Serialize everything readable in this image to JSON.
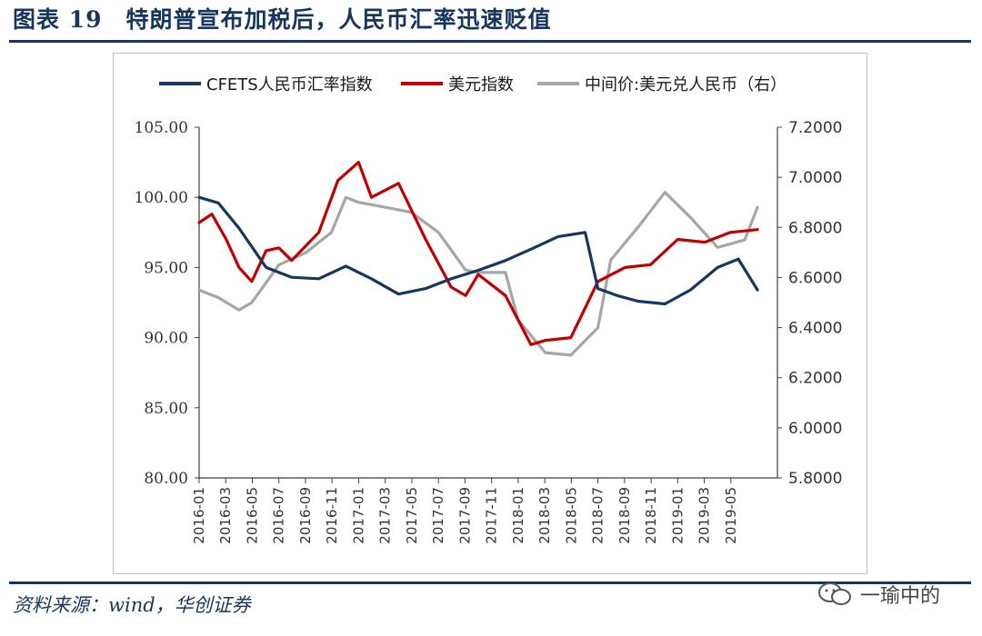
{
  "figure": {
    "title": "图表 19　特朗普宣布加税后，人民币汇率迅速贬值",
    "source": "资料来源：wind，华创证券",
    "watermark": "一瑜中的"
  },
  "colors": {
    "navy": "#17375e",
    "red": "#c00000",
    "gray": "#a6a6a6",
    "axis": "#404040"
  },
  "chart_data": {
    "type": "line",
    "x_tick_labels": [
      "2016-01",
      "2016-03",
      "2016-05",
      "2016-07",
      "2016-09",
      "2016-11",
      "2017-01",
      "2017-03",
      "2017-05",
      "2017-07",
      "2017-09",
      "2017-11",
      "2018-01",
      "2018-03",
      "2018-05",
      "2018-07",
      "2018-09",
      "2018-11",
      "2019-01",
      "2019-03",
      "2019-05"
    ],
    "y_left": {
      "lim": [
        80,
        105
      ],
      "ticks": [
        "80.00",
        "85.00",
        "90.00",
        "95.00",
        "100.00",
        "105.00"
      ]
    },
    "y_right": {
      "lim": [
        5.8,
        7.2
      ],
      "ticks": [
        "5.8000",
        "6.0000",
        "6.2000",
        "6.4000",
        "6.6000",
        "6.8000",
        "7.0000",
        "7.2000"
      ]
    },
    "legend_position": "top",
    "grid": false,
    "series": [
      {
        "name": "CFETS人民币汇率指数",
        "axis": "left",
        "color": "#17375e",
        "x": [
          2016.0,
          2016.12,
          2016.25,
          2016.42,
          2016.58,
          2016.75,
          2016.92,
          2017.08,
          2017.25,
          2017.42,
          2017.58,
          2017.75,
          2017.92,
          2018.08,
          2018.25,
          2018.42,
          2018.5,
          2018.62,
          2018.75,
          2018.92,
          2019.08,
          2019.25,
          2019.38,
          2019.5
        ],
        "values": [
          100.0,
          99.6,
          97.8,
          95.0,
          94.3,
          94.2,
          95.1,
          94.2,
          93.1,
          93.5,
          94.2,
          94.8,
          95.5,
          96.3,
          97.2,
          97.5,
          93.5,
          93.0,
          92.6,
          92.4,
          93.4,
          95.0,
          95.6,
          93.4
        ]
      },
      {
        "name": "美元指数",
        "axis": "left",
        "color": "#c00000",
        "x": [
          2016.0,
          2016.08,
          2016.17,
          2016.25,
          2016.33,
          2016.42,
          2016.5,
          2016.58,
          2016.75,
          2016.87,
          2017.0,
          2017.08,
          2017.25,
          2017.42,
          2017.58,
          2017.67,
          2017.75,
          2017.92,
          2018.08,
          2018.17,
          2018.33,
          2018.5,
          2018.67,
          2018.83,
          2019.0,
          2019.17,
          2019.33,
          2019.5
        ],
        "values": [
          98.2,
          98.8,
          97.0,
          95.0,
          94.0,
          96.2,
          96.4,
          95.5,
          97.5,
          101.2,
          102.5,
          100.0,
          101.0,
          97.0,
          93.6,
          93.0,
          94.5,
          93.0,
          89.5,
          89.8,
          90.0,
          94.0,
          95.0,
          95.2,
          97.0,
          96.8,
          97.5,
          97.7
        ]
      },
      {
        "name": "中间价:美元兑人民币（右）",
        "axis": "right",
        "color": "#a6a6a6",
        "x": [
          2016.0,
          2016.12,
          2016.25,
          2016.33,
          2016.5,
          2016.67,
          2016.83,
          2016.92,
          2017.0,
          2017.17,
          2017.33,
          2017.5,
          2017.67,
          2017.75,
          2017.92,
          2018.0,
          2018.17,
          2018.33,
          2018.5,
          2018.58,
          2018.75,
          2018.92,
          2019.08,
          2019.25,
          2019.42,
          2019.5
        ],
        "values": [
          6.55,
          6.52,
          6.47,
          6.5,
          6.65,
          6.7,
          6.78,
          6.92,
          6.9,
          6.88,
          6.86,
          6.78,
          6.63,
          6.62,
          6.62,
          6.43,
          6.3,
          6.29,
          6.4,
          6.67,
          6.8,
          6.94,
          6.84,
          6.72,
          6.75,
          6.88
        ]
      }
    ]
  }
}
